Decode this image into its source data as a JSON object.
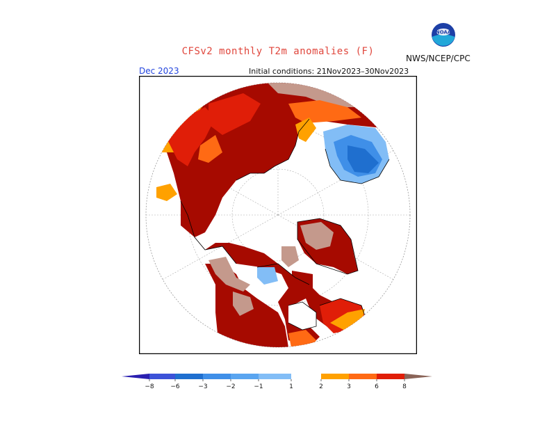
{
  "header": {
    "title": "CFSv2 monthly T2m anomalies (F)",
    "month": "Dec 2023",
    "initial_conditions": "Initial conditions: 21Nov2023–30Nov2023",
    "agency": "NWS/NCEP/CPC",
    "logo_text": "NOAA"
  },
  "colors": {
    "title": "#e0463c",
    "month": "#2244dd",
    "neg8": "#2a1fb0",
    "neg6": "#3c52d8",
    "neg3": "#1f6fcf",
    "neg2": "#3f8fe8",
    "neg1": "#82bdf6",
    "pos1": "#ffa100",
    "pos2": "#ff6a14",
    "pos3": "#e01e08",
    "pos6": "#a60a00",
    "pos8": "#c4998c",
    "pos9": "#8a6458"
  },
  "legend": {
    "ticks": [
      "−8",
      "−6",
      "−3",
      "−2",
      "−1",
      "1",
      "2",
      "3",
      "6",
      "8"
    ]
  }
}
